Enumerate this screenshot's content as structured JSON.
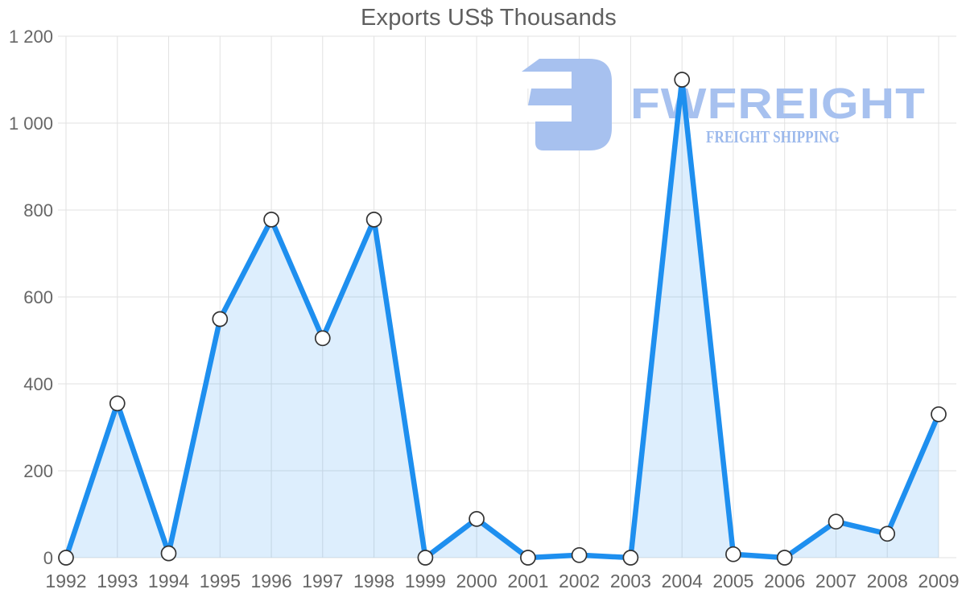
{
  "chart_data": {
    "type": "area",
    "title": "Exports US$ Thousands",
    "categories": [
      "1992",
      "1993",
      "1994",
      "1995",
      "1996",
      "1997",
      "1998",
      "1999",
      "2000",
      "2001",
      "2002",
      "2003",
      "2004",
      "2005",
      "2006",
      "2007",
      "2008",
      "2009"
    ],
    "values": [
      0,
      355,
      10,
      549,
      778,
      505,
      778,
      0,
      89,
      0,
      6,
      0,
      1100,
      8,
      0,
      83,
      55,
      330
    ],
    "xlabel": "",
    "ylabel": "",
    "ylim": [
      0,
      1200
    ],
    "ytick_step": 200,
    "ytick_labels": [
      "0",
      "200",
      "400",
      "600",
      "800",
      "1 000",
      "1 200"
    ],
    "grid": true,
    "legend": "none",
    "marker_shape": "circle",
    "colors": {
      "line": "#1e8fef",
      "fill": "rgba(30,143,239,0.15)",
      "grid": "#e2e2e2",
      "marker_fill": "#ffffff",
      "marker_stroke": "#333333",
      "axis_text": "#666666",
      "title_text": "#5f5f5f"
    }
  },
  "logo": {
    "icon_name": "freight-logo-icon",
    "brand": "FWFREIGHT",
    "subtitle": "FREIGHT SHIPPING",
    "brand_color": "#a7c1ef",
    "subtitle_color": "#9cb9ec"
  }
}
